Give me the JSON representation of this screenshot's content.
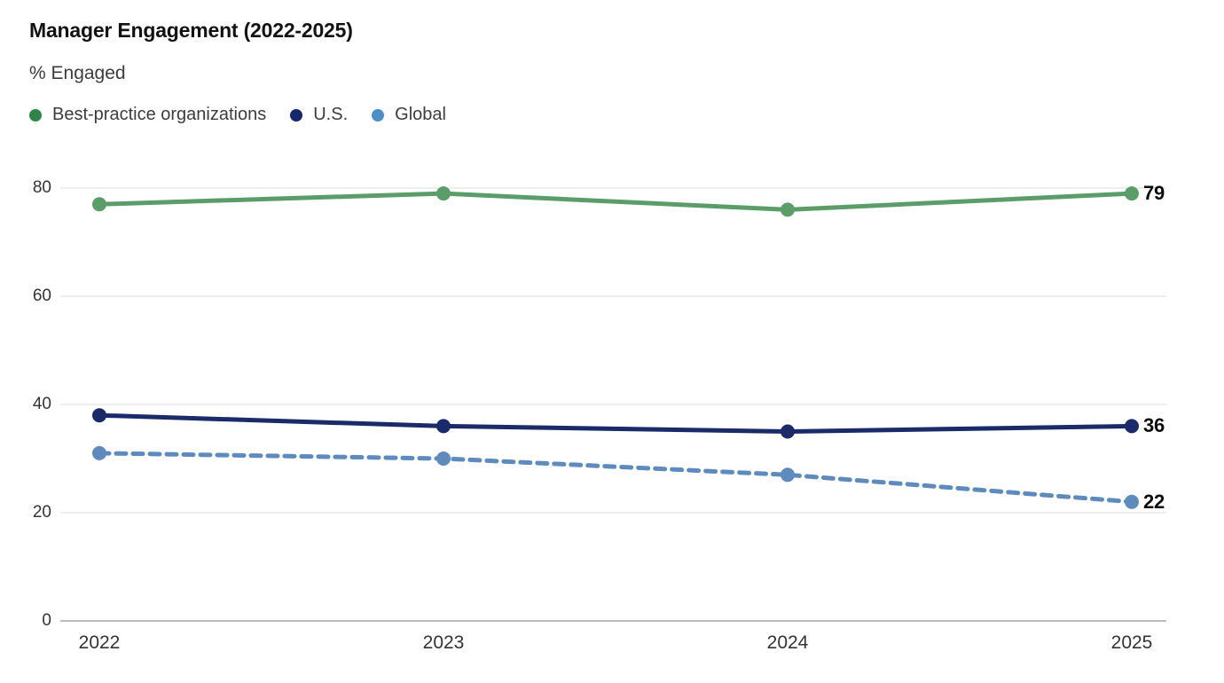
{
  "header": {
    "title": "Manager Engagement (2022-2025)",
    "subtitle": "% Engaged"
  },
  "legend": {
    "items": [
      {
        "label": "Best-practice organizations",
        "dot_color": "#2E8549"
      },
      {
        "label": "U.S.",
        "dot_color": "#16286B"
      },
      {
        "label": "Global",
        "dot_color": "#4A8FC7"
      }
    ]
  },
  "chart_data": {
    "type": "line",
    "title": "Manager Engagement (2022-2025)",
    "ylabel": "% Engaged",
    "categories": [
      "2022",
      "2023",
      "2024",
      "2025"
    ],
    "series": [
      {
        "name": "Best-practice organizations",
        "values": [
          77,
          79,
          76,
          79
        ],
        "color": "#5B9D68",
        "line_style": "solid",
        "end_label": "79"
      },
      {
        "name": "U.S.",
        "values": [
          38,
          36,
          35,
          36
        ],
        "color": "#1B2A68",
        "line_style": "solid",
        "end_label": "36"
      },
      {
        "name": "Global",
        "values": [
          31,
          30,
          27,
          22
        ],
        "color": "#5E8ABD",
        "line_style": "dashed",
        "end_label": "22"
      }
    ],
    "yticks": [
      0,
      20,
      40,
      60,
      80
    ],
    "ylim": [
      0,
      84
    ],
    "grid": "horizontal",
    "legend_position": "top-left",
    "grid_color": "#dedede",
    "axis_color": "#a6a6a6",
    "tick_label_color": "#333333",
    "value_label_color": "#0d0d0d"
  }
}
